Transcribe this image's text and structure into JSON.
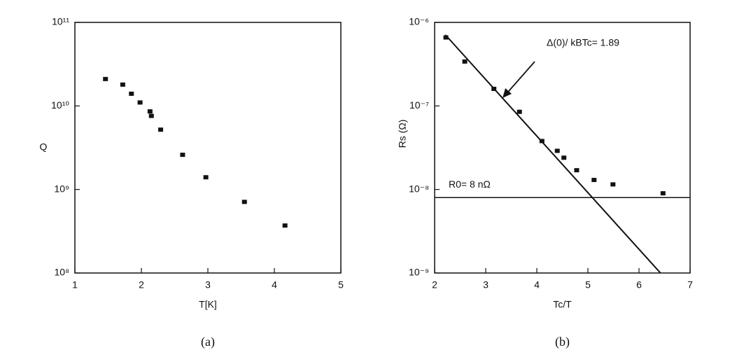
{
  "chart_data": [
    {
      "type": "scatter",
      "xlabel": "T[K]",
      "ylabel": "Q",
      "caption": "(a)",
      "log_y": true,
      "color": "#111111",
      "xlim": [
        1,
        5
      ],
      "xticks": [
        1,
        2,
        3,
        4,
        5
      ],
      "ylim": [
        100000000.0,
        100000000000.0
      ],
      "yticks": [
        {
          "value": 100000000.0,
          "label": "10⁸"
        },
        {
          "value": 1000000000.0,
          "label": "10⁹"
        },
        {
          "value": 10000000000.0,
          "label": "10¹⁰"
        },
        {
          "value": 100000000000.0,
          "label": "10¹¹"
        }
      ],
      "x": [
        1.46,
        1.72,
        1.85,
        1.98,
        2.13,
        2.15,
        2.29,
        2.62,
        2.97,
        3.55,
        4.16
      ],
      "values": [
        21000000000.0,
        18000000000.0,
        14000000000.0,
        11000000000.0,
        8600000000.0,
        7600000000.0,
        5200000000.0,
        2600000000.0,
        1400000000.0,
        710000000.0,
        370000000.0
      ]
    },
    {
      "type": "scatter",
      "xlabel": "Tc/T",
      "ylabel": "Rs (Ω)",
      "caption": "(b)",
      "log_y": true,
      "color": "#111111",
      "xlim": [
        2,
        7
      ],
      "xticks": [
        2,
        3,
        4,
        5,
        6,
        7
      ],
      "ylim": [
        1e-09,
        1e-06
      ],
      "yticks": [
        {
          "value": 1e-09,
          "label": "10⁻⁹"
        },
        {
          "value": 1e-08,
          "label": "10⁻⁸"
        },
        {
          "value": 1e-07,
          "label": "10⁻⁷"
        },
        {
          "value": 1e-06,
          "label": "10⁻⁶"
        }
      ],
      "x": [
        2.22,
        2.59,
        3.16,
        3.66,
        4.1,
        4.4,
        4.53,
        4.78,
        5.12,
        5.49,
        6.47
      ],
      "values": [
        6.6e-07,
        3.4e-07,
        1.6e-07,
        8.5e-08,
        3.8e-08,
        2.9e-08,
        2.4e-08,
        1.7e-08,
        1.3e-08,
        1.15e-08,
        9e-09
      ],
      "fit": {
        "x": [
          2.21,
          6.42
        ],
        "values": [
          7.1e-07,
          1e-09
        ]
      },
      "reference": {
        "value": 8e-09,
        "label": "R0= 8 nΩ"
      },
      "annotation": "Δ(0)/ kBTc= 1.89"
    }
  ]
}
